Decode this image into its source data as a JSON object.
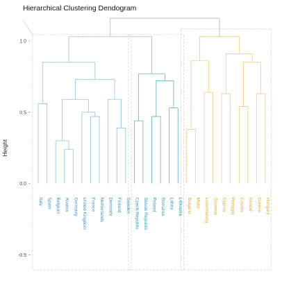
{
  "chart_data": {
    "type": "dendrogram",
    "title": "Hierarchical Clustering Dendogram",
    "ylabel": "Height",
    "xlabel": "",
    "ylim": [
      -0.62,
      1.18
    ],
    "yticks": [
      -0.5,
      0.0,
      0.5,
      1.0
    ],
    "ytick_labels": [
      "-0.5",
      "0.0",
      "0.5",
      "1.0"
    ],
    "grid": false,
    "root_height": 1.16,
    "leaves": [
      "Italy",
      "Spain",
      "Belgium",
      "Austria",
      "Germany",
      "United Kingdom",
      "France",
      "Netherlands",
      "Denmark",
      "Finland",
      "Sweden",
      "Czech Republic",
      "Slovak Republic",
      "Poland",
      "Romania",
      "Latvia",
      "Lithuania",
      "Bulgaria",
      "Malta",
      "Luxembourg",
      "Slovenia",
      "Cyprus",
      "Portugal",
      "Croatia",
      "Ireland",
      "Greece",
      "Hungary"
    ],
    "clusters": [
      {
        "color": "#8ec3df",
        "label_color": "#3b93c9",
        "leaf_range": [
          0,
          10
        ],
        "top": 1.03
      },
      {
        "color": "#5fb3c5",
        "label_color": "#2a9db4",
        "leaf_range": [
          11,
          16
        ],
        "top": 1.03
      },
      {
        "color": "#f0c97a",
        "label_color": "#e8a92b",
        "leaf_range": [
          17,
          26
        ],
        "top": 1.07
      }
    ],
    "merges": [
      {
        "id": "m1",
        "left": "Austria",
        "right": "Germany",
        "height": 0.24
      },
      {
        "id": "m2",
        "left": "Belgium",
        "right": "m1",
        "height": 0.3
      },
      {
        "id": "m3",
        "left": "France",
        "right": "Netherlands",
        "height": 0.47
      },
      {
        "id": "m4",
        "left": "United Kingdom",
        "right": "m3",
        "height": 0.5
      },
      {
        "id": "m5",
        "left": "m2",
        "right": "m4",
        "height": 0.59
      },
      {
        "id": "m6",
        "left": "Finland",
        "right": "Sweden",
        "height": 0.39
      },
      {
        "id": "m7",
        "left": "Denmark",
        "right": "m6",
        "height": 0.59
      },
      {
        "id": "m8",
        "left": "m5",
        "right": "m7",
        "height": 0.73
      },
      {
        "id": "m9",
        "left": "Italy",
        "right": "Spain",
        "height": 0.56
      },
      {
        "id": "m10",
        "left": "m9",
        "right": "m8",
        "height": 0.85
      },
      {
        "id": "m11",
        "left": "Poland",
        "right": "Romania",
        "height": 0.47
      },
      {
        "id": "m12",
        "left": "Latvia",
        "right": "Lithuania",
        "height": 0.53
      },
      {
        "id": "m13",
        "left": "m11",
        "right": "m12",
        "height": 0.72
      },
      {
        "id": "m14",
        "left": "Czech Republic",
        "right": "Slovak Republic",
        "height": 0.44
      },
      {
        "id": "m15",
        "left": "m14",
        "right": "m13",
        "height": 0.77
      },
      {
        "id": "m16",
        "left": "m10",
        "right": "m15",
        "height": 1.03
      },
      {
        "id": "m17",
        "left": "Bulgaria",
        "right": "Malta",
        "height": 0.38
      },
      {
        "id": "m18",
        "left": "Luxembourg",
        "right": "Slovenia",
        "height": 0.64
      },
      {
        "id": "m19",
        "left": "m17",
        "right": "m18",
        "height": 0.86
      },
      {
        "id": "m20",
        "left": "Cyprus",
        "right": "Portugal",
        "height": 0.63
      },
      {
        "id": "m21",
        "left": "Croatia",
        "right": "Ireland",
        "height": 0.54
      },
      {
        "id": "m22",
        "left": "Greece",
        "right": "Hungary",
        "height": 0.63
      },
      {
        "id": "m23",
        "left": "m21",
        "right": "m22",
        "height": 0.85
      },
      {
        "id": "m24",
        "left": "m20",
        "right": "m23",
        "height": 0.91
      },
      {
        "id": "m25",
        "left": "m19",
        "right": "m24",
        "height": 1.03
      },
      {
        "id": "m26",
        "left": "m16",
        "right": "m25",
        "height": 1.16
      }
    ]
  }
}
